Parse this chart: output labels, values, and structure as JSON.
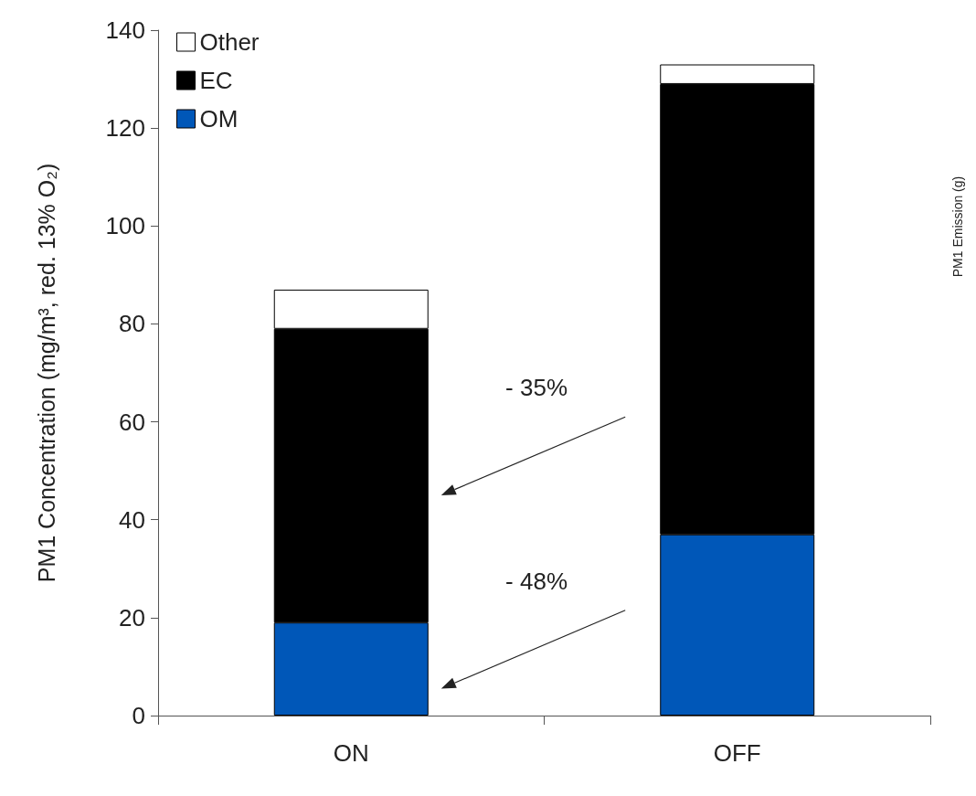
{
  "chart_data": {
    "type": "bar",
    "stacked": true,
    "ylabel": "PM1 Concentration (mg/m³, red. 13% O₂)",
    "y2label": "PM1 Emission (g)",
    "categories": [
      "ON",
      "OFF"
    ],
    "series": [
      {
        "name": "OM",
        "color": "#0057b8",
        "values": [
          19,
          37
        ]
      },
      {
        "name": "EC",
        "color": "#000000",
        "values": [
          60,
          92
        ]
      },
      {
        "name": "Other",
        "color": "#ffffff",
        "values": [
          8,
          4
        ]
      }
    ],
    "ylim": [
      0,
      140
    ],
    "yticks": [
      0,
      20,
      40,
      60,
      80,
      100,
      120,
      140
    ],
    "grid": false,
    "legend": "top left",
    "annotations": [
      "- 35%",
      "- 48%"
    ]
  }
}
